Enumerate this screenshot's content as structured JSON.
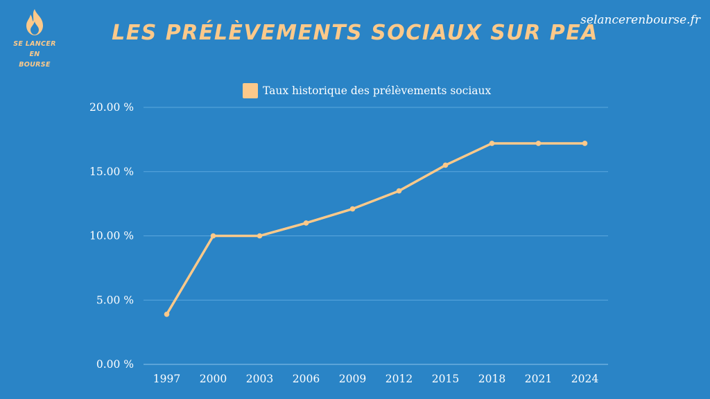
{
  "brand": {
    "logo_line1": "SE LANCER",
    "logo_line2": "EN BOURSE",
    "site_url": "selancerenbourse.fr"
  },
  "title": "LES PRÉLÈVEMENTS SOCIAUX SUR PEA",
  "colors": {
    "background": "#2a84c6",
    "accent": "#fcc98a",
    "text": "#ffffff",
    "grid": "#5aa7dd"
  },
  "chart_data": {
    "type": "line",
    "categories": [
      "1997",
      "2000",
      "2003",
      "2006",
      "2009",
      "2012",
      "2015",
      "2018",
      "2021",
      "2024"
    ],
    "series": [
      {
        "name": "Taux historique des prélèvements sociaux",
        "values": [
          3.9,
          10.0,
          10.0,
          11.0,
          12.1,
          13.5,
          15.5,
          17.2,
          17.2,
          17.2
        ]
      }
    ],
    "ylim": [
      0,
      20
    ],
    "yticks": [
      "0.00 %",
      "5.00 %",
      "10.00 %",
      "15.00 %",
      "20.00 %"
    ],
    "ytick_values": [
      0,
      5,
      10,
      15,
      20
    ],
    "grid": true,
    "legend_position": "top-center",
    "marker": "dot"
  }
}
